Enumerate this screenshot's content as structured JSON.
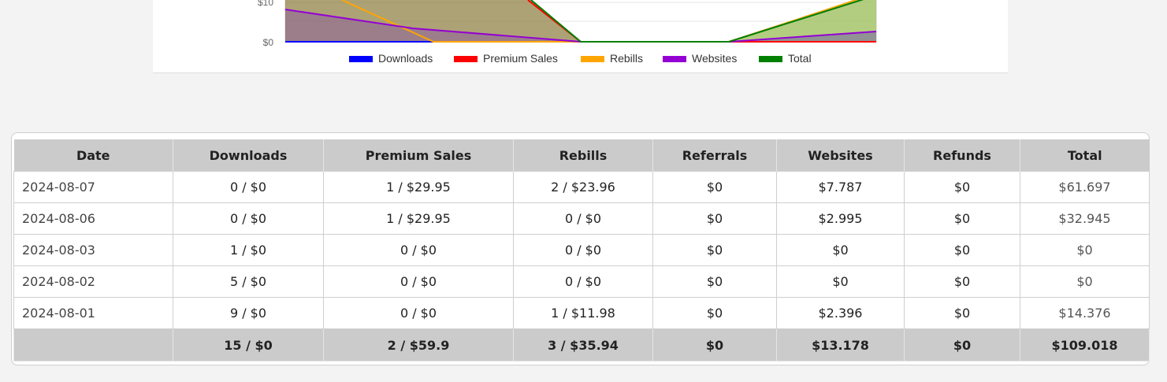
{
  "chart_data": {
    "type": "area",
    "y_tick_labels": [
      "$10",
      "$0"
    ],
    "legend": [
      {
        "name": "Downloads",
        "color": "#0000ff"
      },
      {
        "name": "Premium Sales",
        "color": "#ff0000"
      },
      {
        "name": "Rebills",
        "color": "#ffa500"
      },
      {
        "name": "Websites",
        "color": "#9400d3"
      },
      {
        "name": "Total",
        "color": "#008000"
      }
    ]
  },
  "table": {
    "headers": [
      "Date",
      "Downloads",
      "Premium Sales",
      "Rebills",
      "Referrals",
      "Websites",
      "Refunds",
      "Total"
    ],
    "rows": [
      [
        "2024-08-07",
        "0 / $0",
        "1 / $29.95",
        "2 / $23.96",
        "$0",
        "$7.787",
        "$0",
        "$61.697"
      ],
      [
        "2024-08-06",
        "0 / $0",
        "1 / $29.95",
        "0 / $0",
        "$0",
        "$2.995",
        "$0",
        "$32.945"
      ],
      [
        "2024-08-03",
        "1 / $0",
        "0 / $0",
        "0 / $0",
        "$0",
        "$0",
        "$0",
        "$0"
      ],
      [
        "2024-08-02",
        "5 / $0",
        "0 / $0",
        "0 / $0",
        "$0",
        "$0",
        "$0",
        "$0"
      ],
      [
        "2024-08-01",
        "9 / $0",
        "0 / $0",
        "1 / $11.98",
        "$0",
        "$2.396",
        "$0",
        "$14.376"
      ]
    ],
    "totals": [
      "",
      "15 / $0",
      "2 / $59.9",
      "3 / $35.94",
      "$0",
      "$13.178",
      "$0",
      "$109.018"
    ]
  }
}
